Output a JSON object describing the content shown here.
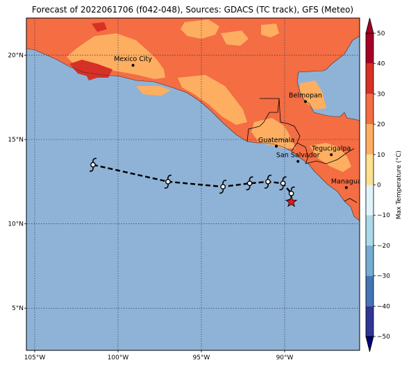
{
  "title": "Forecast of 2022061706 (f042-048), Sources: GDACS (TC track), GFS (Meteo)",
  "colors": {
    "ocean": "#8fb3d7",
    "land_base": "#f46d43",
    "land_light": "#fdae61",
    "land_hot": "#d73027",
    "border": "#000000",
    "grid": "#2b3a55",
    "track": "#000000",
    "star": "#e31a1c"
  },
  "map": {
    "lon_range": [
      -105.5,
      -85.5
    ],
    "lat_range": [
      2.5,
      22.2
    ],
    "lon_ticks": [
      {
        "value": -105,
        "label": "105°W"
      },
      {
        "value": -100,
        "label": "100°W"
      },
      {
        "value": -95,
        "label": "95°W"
      },
      {
        "value": -90,
        "label": "90°W"
      }
    ],
    "lat_ticks": [
      {
        "value": 5,
        "label": "5°N"
      },
      {
        "value": 10,
        "label": "10°N"
      },
      {
        "value": 15,
        "label": "15°N"
      },
      {
        "value": 20,
        "label": "20°N"
      }
    ],
    "cities": [
      {
        "name": "Mexico City",
        "lon": -99.1,
        "lat": 19.4
      },
      {
        "name": "Belmopan",
        "lon": -88.75,
        "lat": 17.25
      },
      {
        "name": "Guatemala",
        "lon": -90.5,
        "lat": 14.6
      },
      {
        "name": "San Salvador",
        "lon": -89.2,
        "lat": 13.7
      },
      {
        "name": "Tegucigalpa",
        "lon": -87.2,
        "lat": 14.1
      },
      {
        "name": "Managua",
        "lon": -86.3,
        "lat": 12.15
      }
    ]
  },
  "track": {
    "points": [
      {
        "lon": -101.5,
        "lat": 13.5
      },
      {
        "lon": -97.0,
        "lat": 12.5
      },
      {
        "lon": -93.7,
        "lat": 12.2
      },
      {
        "lon": -92.1,
        "lat": 12.4
      },
      {
        "lon": -91.0,
        "lat": 12.5
      },
      {
        "lon": -90.1,
        "lat": 12.4
      },
      {
        "lon": -89.6,
        "lat": 11.8
      }
    ],
    "current_position": {
      "lon": -89.6,
      "lat": 11.3
    }
  },
  "colorbar": {
    "label": "Max Temperature (°C)",
    "range": [
      -50,
      50
    ],
    "ticks": [
      50,
      40,
      30,
      20,
      10,
      0,
      -10,
      -20,
      -30,
      -40,
      -50
    ],
    "tick_labels": [
      "50",
      "40",
      "30",
      "20",
      "10",
      "0",
      "−10",
      "−20",
      "−30",
      "−40",
      "−50"
    ],
    "levels": [
      {
        "from": 40,
        "to": 50,
        "color": "#a50026"
      },
      {
        "from": 30,
        "to": 40,
        "color": "#d73027"
      },
      {
        "from": 20,
        "to": 30,
        "color": "#f46d43"
      },
      {
        "from": 10,
        "to": 20,
        "color": "#fdae61"
      },
      {
        "from": 0,
        "to": 10,
        "color": "#fee090"
      },
      {
        "from": -10,
        "to": 0,
        "color": "#e0f3f8"
      },
      {
        "from": -20,
        "to": -10,
        "color": "#abd9e9"
      },
      {
        "from": -30,
        "to": -20,
        "color": "#74add1"
      },
      {
        "from": -40,
        "to": -30,
        "color": "#4575b4"
      },
      {
        "from": -50,
        "to": -40,
        "color": "#313695"
      }
    ],
    "over_color": "#a50026",
    "under_color": "#000080"
  }
}
